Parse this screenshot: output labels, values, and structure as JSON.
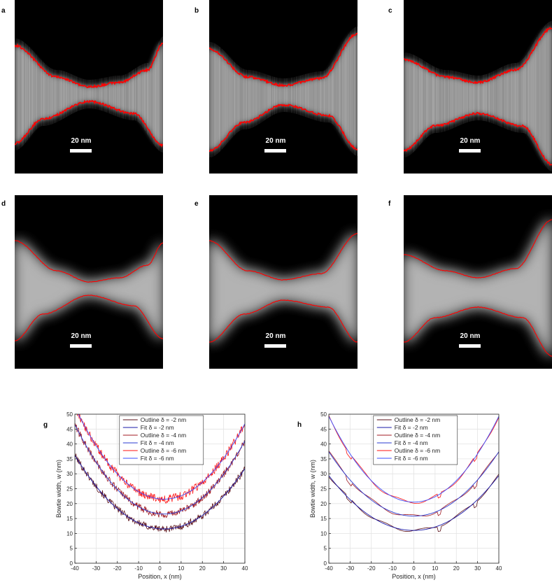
{
  "panels": {
    "micrographs": [
      {
        "letter": "a",
        "scale": "20 nm",
        "style": "noisy"
      },
      {
        "letter": "b",
        "scale": "20 nm",
        "style": "noisy"
      },
      {
        "letter": "c",
        "scale": "20 nm",
        "style": "noisy"
      },
      {
        "letter": "d",
        "scale": "20 nm",
        "style": "smooth"
      },
      {
        "letter": "e",
        "scale": "20 nm",
        "style": "smooth"
      },
      {
        "letter": "f",
        "scale": "20 nm",
        "style": "smooth"
      }
    ],
    "outline_color": "#ff0000"
  },
  "chart_data": [
    {
      "panel": "g",
      "type": "line",
      "xlabel": "Position, x (nm)",
      "ylabel": "Bowtie width, w (nm)",
      "xlim": [
        -40,
        40
      ],
      "ylim": [
        0,
        50
      ],
      "xticks": [
        -40,
        -30,
        -20,
        -10,
        0,
        10,
        20,
        30,
        40
      ],
      "yticks": [
        0,
        5,
        10,
        15,
        20,
        25,
        30,
        35,
        40,
        45,
        50
      ],
      "grid": true,
      "legend_position": "top-center",
      "legend": [
        "Outline δ = -2 nm",
        "Fit δ = -2 nm",
        "Outline δ = -4 nm",
        "Fit δ = -4 nm",
        "Outline δ = -6 nm",
        "Fit δ = -6 nm"
      ],
      "series": [
        {
          "name": "Outline δ = -2 nm",
          "kind": "outline",
          "color": "#5a0f17",
          "min": 11.5,
          "curv": 0.014,
          "x0": 2,
          "noise": 1.2
        },
        {
          "name": "Fit δ = -2 nm",
          "kind": "fit",
          "color": "#1a1aaa",
          "min": 11.5,
          "curv": 0.014,
          "x0": 2
        },
        {
          "name": "Outline δ = -4 nm",
          "kind": "outline",
          "color": "#a01820",
          "min": 16.5,
          "curv": 0.017,
          "x0": 2,
          "noise": 1.2
        },
        {
          "name": "Fit δ = -4 nm",
          "kind": "fit",
          "color": "#2a3ad0",
          "min": 16.5,
          "curv": 0.017,
          "x0": 2
        },
        {
          "name": "Outline δ = -6 nm",
          "kind": "outline",
          "color": "#ff1010",
          "min": 21.5,
          "curv": 0.0175,
          "x0": 2,
          "noise": 1.4
        },
        {
          "name": "Fit δ = -6 nm",
          "kind": "fit",
          "color": "#3a4cff",
          "min": 21.5,
          "curv": 0.0175,
          "x0": 2
        }
      ]
    },
    {
      "panel": "h",
      "type": "line",
      "xlabel": "Position, x (nm)",
      "ylabel": "Bowtie width, w (nm)",
      "xlim": [
        -40,
        40
      ],
      "ylim": [
        0,
        50
      ],
      "xticks": [
        -40,
        -30,
        -20,
        -10,
        0,
        10,
        20,
        30,
        40
      ],
      "yticks": [
        0,
        5,
        10,
        15,
        20,
        25,
        30,
        35,
        40,
        45,
        50
      ],
      "grid": true,
      "legend_position": "top-center",
      "legend": [
        "Outline δ = -2 nm",
        "Fit δ = -2 nm",
        "Outline δ = -4 nm",
        "Fit δ = -4 nm",
        "Outline δ = -6 nm",
        "Fit δ = -6 nm"
      ],
      "series": [
        {
          "name": "Outline δ = -2 nm",
          "kind": "outline",
          "color": "#5a0f17",
          "min": 11,
          "curv": 0.0115,
          "x0": 0,
          "noise": 0
        },
        {
          "name": "Fit δ = -2 nm",
          "kind": "fit",
          "color": "#1a1aaa",
          "min": 11,
          "curv": 0.0115,
          "x0": 0
        },
        {
          "name": "Outline δ = -4 nm",
          "kind": "outline",
          "color": "#a01820",
          "min": 15.8,
          "curv": 0.0135,
          "x0": 0,
          "noise": 0
        },
        {
          "name": "Fit δ = -4 nm",
          "kind": "fit",
          "color": "#2a3ad0",
          "min": 15.8,
          "curv": 0.0135,
          "x0": 0
        },
        {
          "name": "Outline δ = -6 nm",
          "kind": "outline",
          "color": "#ff1010",
          "min": 20.5,
          "curv": 0.018,
          "x0": 0,
          "noise": 0
        },
        {
          "name": "Fit δ = -6 nm",
          "kind": "fit",
          "color": "#3a4cff",
          "min": 20.5,
          "curv": 0.018,
          "x0": 0
        }
      ]
    }
  ]
}
